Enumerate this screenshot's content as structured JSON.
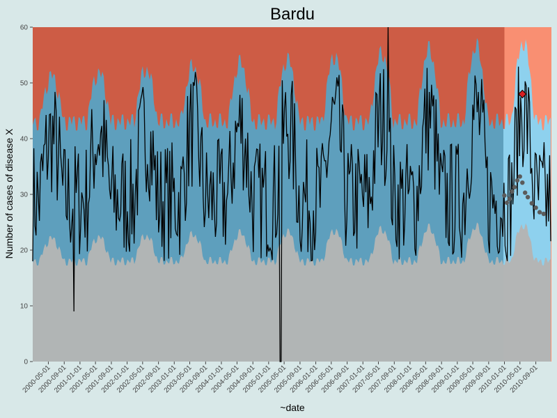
{
  "chart_data": {
    "type": "area",
    "title": "Bardu",
    "xlabel": "~date",
    "ylabel": "Number of cases of disease X",
    "ylim": [
      0,
      60
    ],
    "xlim": [
      "2000-01-01",
      "2010-12-31"
    ],
    "yticks": [
      0,
      10,
      20,
      30,
      40,
      50,
      60
    ],
    "xticks": [
      "2000-05-01",
      "2000-09-01",
      "2001-01-01",
      "2001-05-01",
      "2001-09-01",
      "2002-01-01",
      "2002-05-01",
      "2002-09-01",
      "2003-01-01",
      "2003-05-01",
      "2003-09-01",
      "2004-01-01",
      "2004-05-01",
      "2004-09-01",
      "2005-01-01",
      "2005-05-01",
      "2005-09-01",
      "2006-01-01",
      "2006-05-01",
      "2006-09-01",
      "2007-01-01",
      "2007-05-01",
      "2007-09-01",
      "2008-01-01",
      "2008-05-01",
      "2008-09-01",
      "2009-01-01",
      "2009-05-01",
      "2009-09-01",
      "2010-01-01",
      "2010-05-01",
      "2010-09-01"
    ],
    "grid": false,
    "colors": {
      "background": "#d8e8e8",
      "low_zone": "#b1b5b5",
      "normal_zone": "#5e9fbd",
      "high_zone": "#cd5c45",
      "forecast_low": "#b3b5b5",
      "forecast_normal": "#8ed1ee",
      "forecast_high": "#f98f72",
      "observed_line": "#000000",
      "forecast_points": "#5b5b5b",
      "alert_marker": "#d81f22"
    },
    "forecast_start": "2010-01-01",
    "forecast_threshold_points": [
      {
        "x": "2010-01-01",
        "y": 29.8
      },
      {
        "x": "2010-01-20",
        "y": 28.5
      },
      {
        "x": "2010-02-10",
        "y": 29.2
      },
      {
        "x": "2010-03-01",
        "y": 30.5
      },
      {
        "x": "2010-03-20",
        "y": 31.3
      },
      {
        "x": "2010-04-10",
        "y": 32.5
      },
      {
        "x": "2010-05-01",
        "y": 33.2
      },
      {
        "x": "2010-05-20",
        "y": 32.1
      },
      {
        "x": "2010-06-10",
        "y": 30.3
      },
      {
        "x": "2010-07-01",
        "y": 29.5
      },
      {
        "x": "2010-08-01",
        "y": 28.4
      },
      {
        "x": "2010-09-01",
        "y": 27.6
      },
      {
        "x": "2010-10-01",
        "y": 26.8
      },
      {
        "x": "2010-11-01",
        "y": 26.5
      }
    ],
    "alert_points": [
      {
        "x": "2010-05-20",
        "y": 48
      }
    ]
  }
}
